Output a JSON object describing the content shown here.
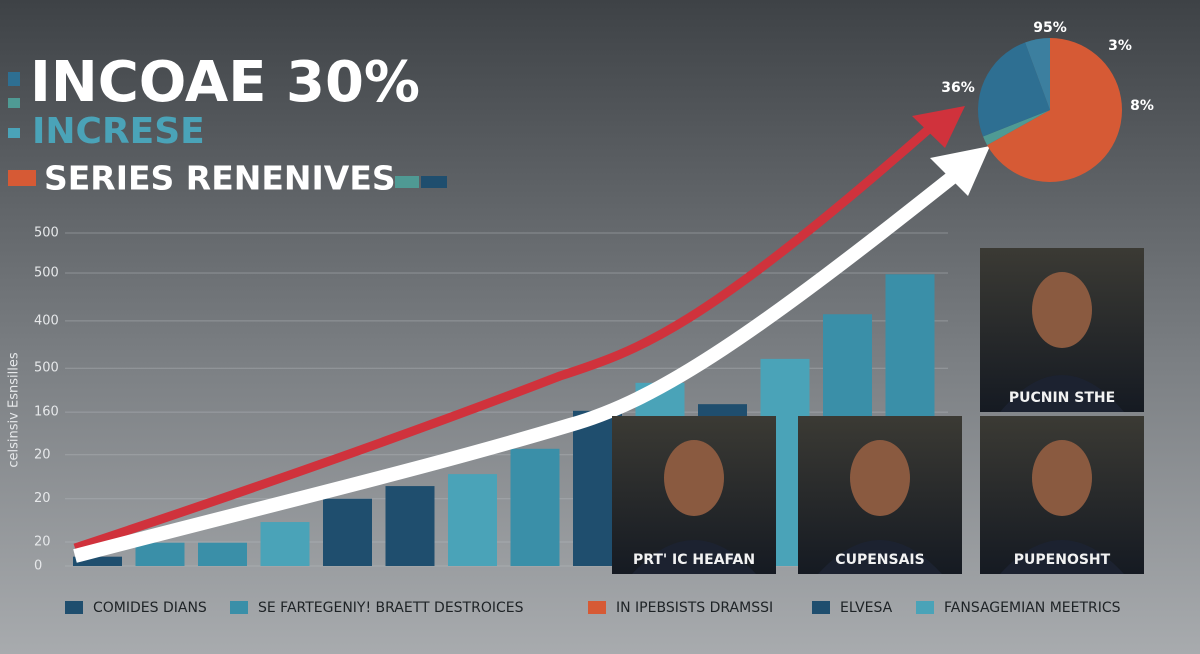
{
  "chart_data": [
    {
      "type": "bar",
      "title": "INCOAE 30%",
      "subtitle": "INCRESE",
      "heading": "SERIES RENENIVES",
      "ylabel": "celsinsiv Esnsilles",
      "categories": [
        null,
        null,
        null,
        null,
        null,
        null,
        null,
        null,
        null,
        null,
        null,
        null,
        null,
        null
      ],
      "values": [
        14,
        35,
        35,
        66,
        101,
        120,
        138,
        176,
        233,
        275,
        243,
        311,
        378,
        438
      ],
      "colors": [
        "#1f4e6e",
        "#3a8fa8",
        "#3a8fa8",
        "#4aa3b8",
        "#1f4e6e",
        "#1f4e6e",
        "#4aa3b8",
        "#3a8fa8",
        "#1f4e6e",
        "#4aa3b8",
        "#1f4e6e",
        "#4aa3b8",
        "#3a8fa8",
        "#3a8fa8"
      ],
      "ylim": [
        0,
        500
      ],
      "yticks": [
        0,
        {
          "value": 36,
          "label": "20"
        },
        {
          "value": 101,
          "label": "20"
        },
        {
          "value": 167,
          "label": "20"
        },
        {
          "value": 231,
          "label": "160"
        },
        {
          "value": 297,
          "label": "500"
        },
        {
          "value": 368,
          "label": "400"
        },
        {
          "value": 440,
          "label": "500"
        },
        {
          "value": 500,
          "label": "500"
        }
      ],
      "grid": true,
      "legend": [
        {
          "label": "COMIDES DIANS",
          "color": "#1f4e6e"
        },
        {
          "label": "SE FARTEGENIY! BRAETT DESTROICES",
          "color": "#3a8fa8"
        },
        {
          "label": "IN IPEBSISTS DRAMSSI",
          "color": "#d65a35"
        },
        {
          "label": "ELVESA",
          "color": "#1f4e6e"
        },
        {
          "label": "FANSAGEMIAN MEETRICS",
          "color": "#4aa3b8"
        }
      ]
    },
    {
      "type": "pie",
      "values": [
        95,
        3,
        36,
        8
      ],
      "value_labels": [
        "95%",
        "3%",
        "36%",
        "8%"
      ],
      "colors": [
        "#d65a35",
        "#4f9a94",
        "#2e6f92",
        "#3c7f9f"
      ]
    }
  ],
  "photos": [
    "PUCNIN STHE",
    "PRT' IC HEAFAN",
    "CUPENSAIS",
    "PUPENOSHT"
  ]
}
